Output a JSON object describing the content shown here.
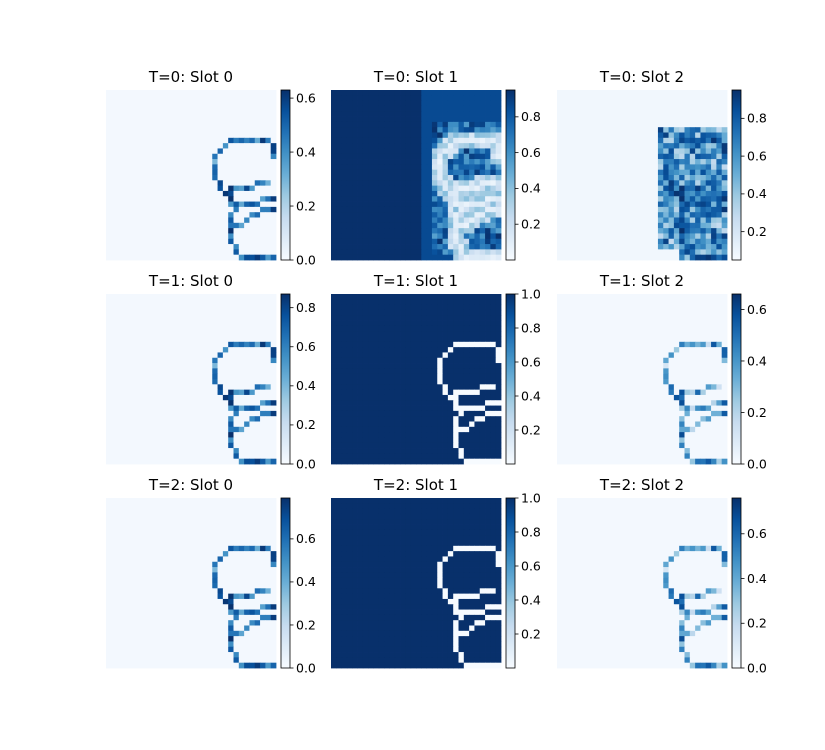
{
  "chart_data": [
    {
      "type": "heatmap",
      "title": "T=0: Slot 0",
      "colormap": "Blues",
      "colorbar": {
        "vmin": 0,
        "vmax": 0.63,
        "ticks": [
          "0.0",
          "0.2",
          "0.4",
          "0.6"
        ]
      },
      "grid": false,
      "pattern": "outline"
    },
    {
      "type": "heatmap",
      "title": "T=0: Slot 1",
      "colormap": "Blues",
      "colorbar": {
        "vmin": 0.0,
        "vmax": 0.95,
        "ticks": [
          "0.2",
          "0.4",
          "0.6",
          "0.8"
        ]
      },
      "grid": false,
      "pattern": "background-blurred"
    },
    {
      "type": "heatmap",
      "title": "T=0: Slot 2",
      "colormap": "Blues",
      "colorbar": {
        "vmin": 0.05,
        "vmax": 0.95,
        "ticks": [
          "0.2",
          "0.4",
          "0.6",
          "0.8"
        ]
      },
      "grid": false,
      "pattern": "blob"
    },
    {
      "type": "heatmap",
      "title": "T=1: Slot 0",
      "colormap": "Blues",
      "colorbar": {
        "vmin": 0,
        "vmax": 0.87,
        "ticks": [
          "0.0",
          "0.2",
          "0.4",
          "0.6",
          "0.8"
        ]
      },
      "grid": false,
      "pattern": "outline"
    },
    {
      "type": "heatmap",
      "title": "T=1: Slot 1",
      "colormap": "Blues",
      "colorbar": {
        "vmin": 0.0,
        "vmax": 1.0,
        "ticks": [
          "0.2",
          "0.4",
          "0.6",
          "0.8",
          "1.0"
        ]
      },
      "grid": false,
      "pattern": "background"
    },
    {
      "type": "heatmap",
      "title": "T=1: Slot 2",
      "colormap": "Blues",
      "colorbar": {
        "vmin": 0,
        "vmax": 0.66,
        "ticks": [
          "0.0",
          "0.2",
          "0.4",
          "0.6"
        ]
      },
      "grid": false,
      "pattern": "outline-light"
    },
    {
      "type": "heatmap",
      "title": "T=2: Slot 0",
      "colormap": "Blues",
      "colorbar": {
        "vmin": 0,
        "vmax": 0.79,
        "ticks": [
          "0.0",
          "0.2",
          "0.4",
          "0.6"
        ]
      },
      "grid": false,
      "pattern": "outline"
    },
    {
      "type": "heatmap",
      "title": "T=2: Slot 1",
      "colormap": "Blues",
      "colorbar": {
        "vmin": 0.0,
        "vmax": 1.0,
        "ticks": [
          "0.2",
          "0.4",
          "0.6",
          "0.8",
          "1.0"
        ]
      },
      "grid": false,
      "pattern": "background"
    },
    {
      "type": "heatmap",
      "title": "T=2: Slot 2",
      "colormap": "Blues",
      "colorbar": {
        "vmin": 0,
        "vmax": 0.76,
        "ticks": [
          "0.0",
          "0.2",
          "0.4",
          "0.6"
        ]
      },
      "grid": false,
      "pattern": "outline-light"
    }
  ]
}
